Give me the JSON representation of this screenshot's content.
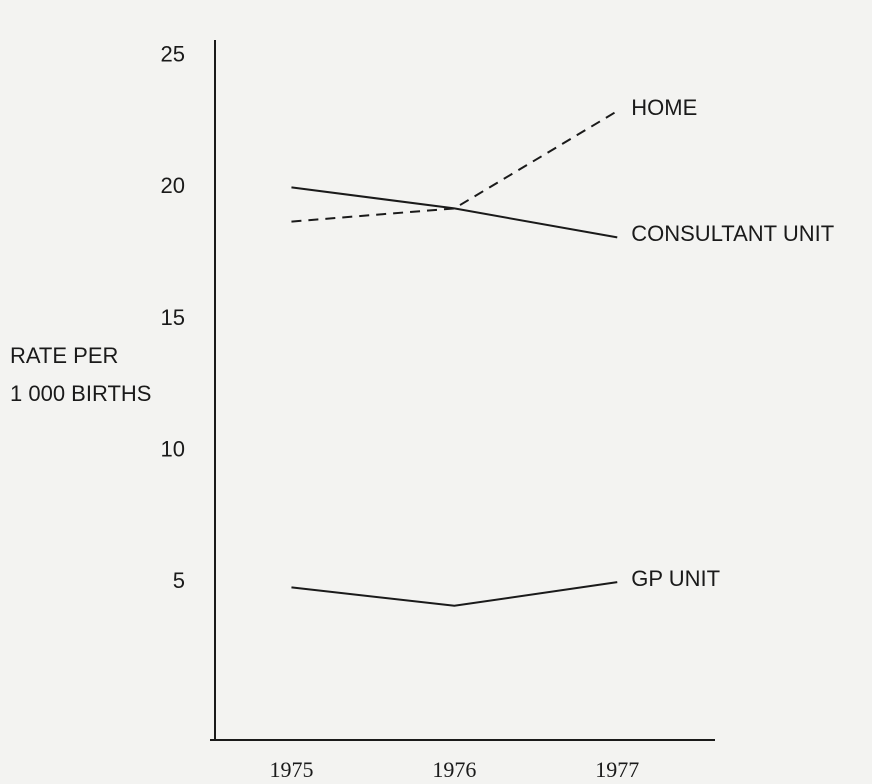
{
  "chart_data": {
    "type": "line",
    "ylabel": [
      "RATE PER",
      "1 000 BIRTHS"
    ],
    "x": [
      1975,
      1976,
      1977
    ],
    "xlim": [
      1974.5,
      1977.6
    ],
    "xticks": [
      1975,
      1976,
      1977
    ],
    "ylim": [
      -1,
      25.6
    ],
    "yticks": [
      5,
      10,
      15,
      20,
      25
    ],
    "grid": false,
    "series": [
      {
        "name": "HOME",
        "color": "#1a1a1a",
        "dash": true,
        "values": [
          18.7,
          19.2,
          22.9
        ]
      },
      {
        "name": "CONSULTANT UNIT",
        "color": "#1a1a1a",
        "dash": false,
        "values": [
          20.0,
          19.2,
          18.1
        ]
      },
      {
        "name": "GP UNIT",
        "color": "#1a1a1a",
        "dash": false,
        "values": [
          4.8,
          4.1,
          5.0
        ]
      }
    ]
  }
}
